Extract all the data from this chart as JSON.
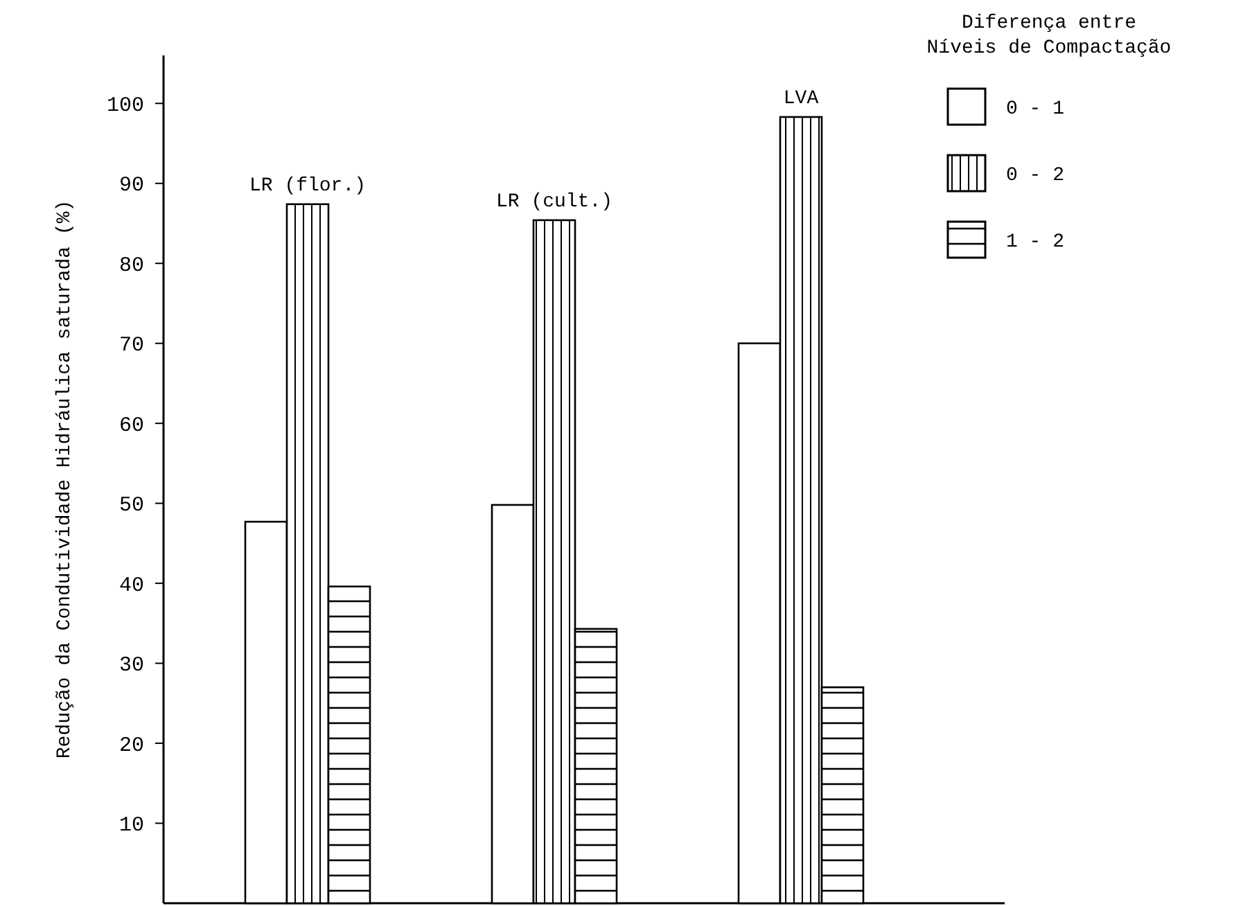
{
  "chart_data": {
    "type": "bar",
    "ylabel": "Redução da Condutividade Hidráulica saturada (%)",
    "legend_title": "Diferença entre\nNíveis de Compactação",
    "categories": [
      "LR (flor.)",
      "LR (cult.)",
      "LVA"
    ],
    "series": [
      {
        "name": "0 - 1",
        "color": "#ffffff",
        "values": [
          47.7,
          49.8,
          70
        ]
      },
      {
        "name": "0 - 2",
        "color": "#ffffff",
        "values": [
          87.4,
          85.4,
          98.3
        ]
      },
      {
        "name": "1 - 2",
        "color": "#ffffff",
        "values": [
          39.6,
          34.3,
          27
        ]
      }
    ],
    "ylim": [
      0,
      106
    ],
    "yticks": [
      10,
      20,
      30,
      40,
      50,
      60,
      70,
      80,
      90,
      100
    ],
    "legend": "top right",
    "grid": false
  }
}
